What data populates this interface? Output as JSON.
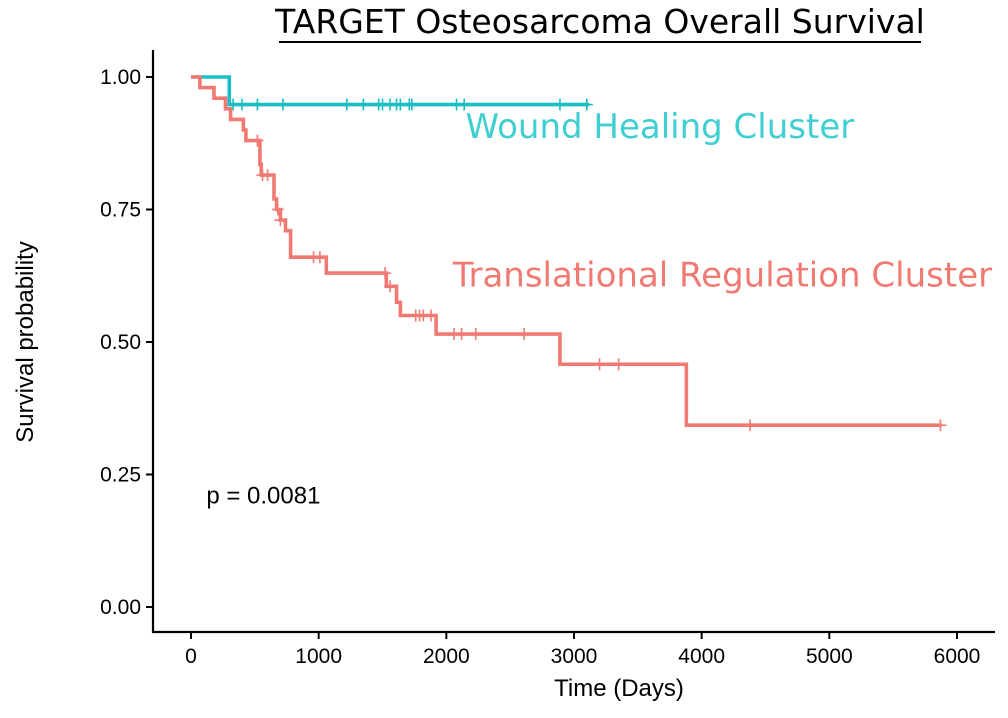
{
  "chart_data": {
    "type": "line",
    "title": "TARGET Osteosarcoma Overall Survival",
    "xlabel": "Time (Days)",
    "ylabel": "Survival probability",
    "xlim": [
      -300,
      6300
    ],
    "ylim": [
      -0.05,
      1.05
    ],
    "xticks": [
      0,
      1000,
      2000,
      3000,
      4000,
      5000,
      6000
    ],
    "yticks": [
      0.0,
      0.25,
      0.5,
      0.75,
      1.0
    ],
    "xtick_labels": [
      "0",
      "1000",
      "2000",
      "3000",
      "4000",
      "5000",
      "6000"
    ],
    "ytick_labels": [
      "0.00",
      "0.25",
      "0.50",
      "0.75",
      "1.00"
    ],
    "grid": false,
    "legend": "none",
    "annotations": [
      {
        "text": "p = 0.0081",
        "x": 120,
        "y": 0.195
      }
    ],
    "series": [
      {
        "name": "Wound Healing Cluster",
        "color": "#18BFC4",
        "label_color": "#3FCFD3",
        "label_pos": [
          2150,
          0.885
        ],
        "steps": [
          [
            0,
            1.0
          ],
          [
            300,
            0.948
          ],
          [
            3120,
            0.948
          ]
        ],
        "censors": [
          [
            330,
            0.948
          ],
          [
            400,
            0.948
          ],
          [
            520,
            0.948
          ],
          [
            720,
            0.948
          ],
          [
            1220,
            0.948
          ],
          [
            1350,
            0.948
          ],
          [
            1470,
            0.948
          ],
          [
            1500,
            0.948
          ],
          [
            1560,
            0.948
          ],
          [
            1610,
            0.948
          ],
          [
            1640,
            0.948
          ],
          [
            1710,
            0.948
          ],
          [
            1730,
            0.948
          ],
          [
            2080,
            0.948
          ],
          [
            2140,
            0.948
          ],
          [
            2890,
            0.948
          ],
          [
            3100,
            0.948
          ]
        ]
      },
      {
        "name": "Translational Regulation Cluster",
        "color": "#F07A72",
        "label_color": "#F07A72",
        "label_pos": [
          2050,
          0.605
        ],
        "steps": [
          [
            0,
            1.0
          ],
          [
            70,
            0.98
          ],
          [
            180,
            0.96
          ],
          [
            270,
            0.94
          ],
          [
            310,
            0.92
          ],
          [
            410,
            0.9
          ],
          [
            430,
            0.88
          ],
          [
            540,
            0.835
          ],
          [
            550,
            0.815
          ],
          [
            650,
            0.77
          ],
          [
            670,
            0.75
          ],
          [
            700,
            0.73
          ],
          [
            740,
            0.71
          ],
          [
            780,
            0.66
          ],
          [
            1060,
            0.63
          ],
          [
            1530,
            0.605
          ],
          [
            1610,
            0.575
          ],
          [
            1640,
            0.55
          ],
          [
            1920,
            0.515
          ],
          [
            2890,
            0.458
          ],
          [
            3880,
            0.343
          ],
          [
            5880,
            0.343
          ]
        ],
        "censors": [
          [
            520,
            0.88
          ],
          [
            560,
            0.815
          ],
          [
            600,
            0.815
          ],
          [
            680,
            0.75
          ],
          [
            700,
            0.73
          ],
          [
            960,
            0.66
          ],
          [
            1010,
            0.66
          ],
          [
            1520,
            0.63
          ],
          [
            1560,
            0.605
          ],
          [
            1760,
            0.55
          ],
          [
            1790,
            0.55
          ],
          [
            1820,
            0.55
          ],
          [
            1880,
            0.55
          ],
          [
            2060,
            0.515
          ],
          [
            2120,
            0.515
          ],
          [
            2230,
            0.515
          ],
          [
            2610,
            0.515
          ],
          [
            3200,
            0.458
          ],
          [
            3350,
            0.458
          ],
          [
            4380,
            0.343
          ],
          [
            5870,
            0.343
          ]
        ]
      }
    ]
  }
}
